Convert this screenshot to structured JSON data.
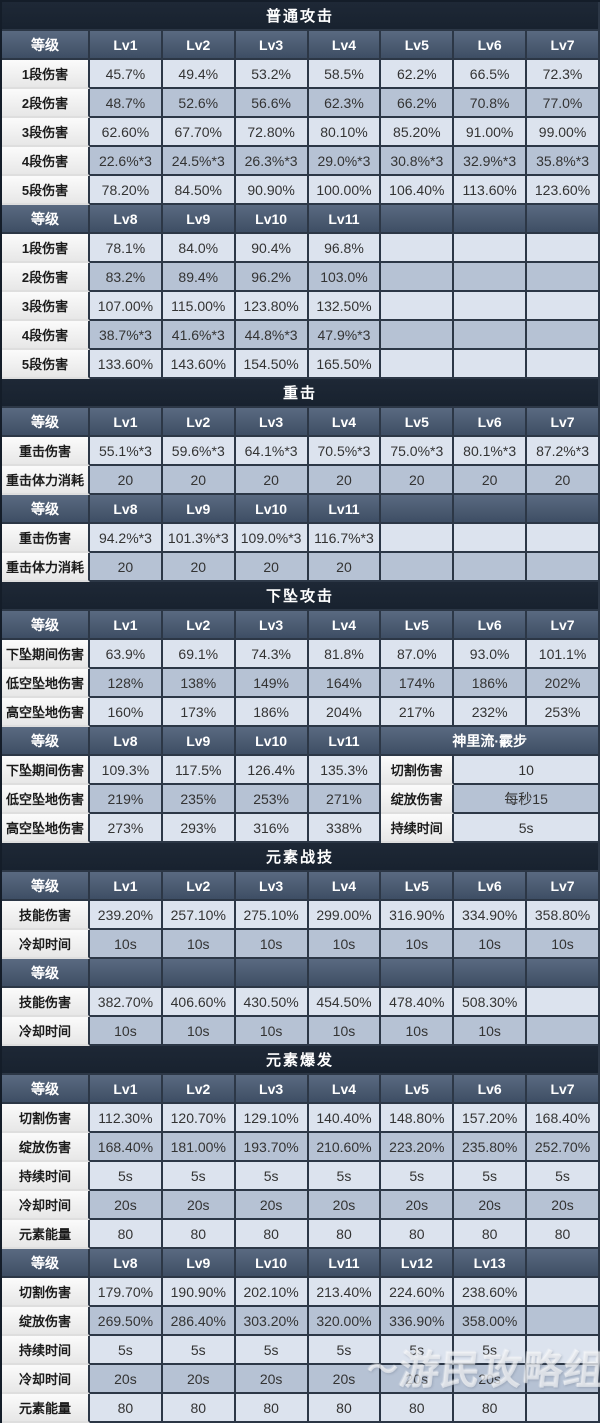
{
  "palette": {
    "title_bg": "#1e2836",
    "header_bg": "#46566d",
    "row_light": "#dce3ee",
    "row_dark": "#b6c2d4",
    "label_bg": "#f2f2f2",
    "grid": "#2c3746"
  },
  "watermark": {
    "text": "游民攻略组"
  },
  "chart_data": [
    {
      "type": "table",
      "title": "普通攻击",
      "blocks": [
        {
          "header": [
            "等级",
            "Lv1",
            "Lv2",
            "Lv3",
            "Lv4",
            "Lv5",
            "Lv6",
            "Lv7"
          ],
          "rows": [
            {
              "label": "1段伤害",
              "values": [
                "45.7%",
                "49.4%",
                "53.2%",
                "58.5%",
                "62.2%",
                "66.5%",
                "72.3%"
              ]
            },
            {
              "label": "2段伤害",
              "values": [
                "48.7%",
                "52.6%",
                "56.6%",
                "62.3%",
                "66.2%",
                "70.8%",
                "77.0%"
              ]
            },
            {
              "label": "3段伤害",
              "values": [
                "62.60%",
                "67.70%",
                "72.80%",
                "80.10%",
                "85.20%",
                "91.00%",
                "99.00%"
              ]
            },
            {
              "label": "4段伤害",
              "values": [
                "22.6%*3",
                "24.5%*3",
                "26.3%*3",
                "29.0%*3",
                "30.8%*3",
                "32.9%*3",
                "35.8%*3"
              ]
            },
            {
              "label": "5段伤害",
              "values": [
                "78.20%",
                "84.50%",
                "90.90%",
                "100.00%",
                "106.40%",
                "113.60%",
                "123.60%"
              ]
            }
          ]
        },
        {
          "header": [
            "等级",
            "Lv8",
            "Lv9",
            "Lv10",
            "Lv11",
            "",
            "",
            ""
          ],
          "rows": [
            {
              "label": "1段伤害",
              "values": [
                "78.1%",
                "84.0%",
                "90.4%",
                "96.8%",
                "",
                "",
                ""
              ]
            },
            {
              "label": "2段伤害",
              "values": [
                "83.2%",
                "89.4%",
                "96.2%",
                "103.0%",
                "",
                "",
                ""
              ]
            },
            {
              "label": "3段伤害",
              "values": [
                "107.00%",
                "115.00%",
                "123.80%",
                "132.50%",
                "",
                "",
                ""
              ]
            },
            {
              "label": "4段伤害",
              "values": [
                "38.7%*3",
                "41.6%*3",
                "44.8%*3",
                "47.9%*3",
                "",
                "",
                ""
              ]
            },
            {
              "label": "5段伤害",
              "values": [
                "133.60%",
                "143.60%",
                "154.50%",
                "165.50%",
                "",
                "",
                ""
              ]
            }
          ]
        }
      ]
    },
    {
      "type": "table",
      "title": "重击",
      "blocks": [
        {
          "header": [
            "等级",
            "Lv1",
            "Lv2",
            "Lv3",
            "Lv4",
            "Lv5",
            "Lv6",
            "Lv7"
          ],
          "rows": [
            {
              "label": "重击伤害",
              "values": [
                "55.1%*3",
                "59.6%*3",
                "64.1%*3",
                "70.5%*3",
                "75.0%*3",
                "80.1%*3",
                "87.2%*3"
              ]
            },
            {
              "label": "重击体力消耗",
              "values": [
                "20",
                "20",
                "20",
                "20",
                "20",
                "20",
                "20"
              ]
            }
          ]
        },
        {
          "header": [
            "等级",
            "Lv8",
            "Lv9",
            "Lv10",
            "Lv11",
            "",
            "",
            ""
          ],
          "rows": [
            {
              "label": "重击伤害",
              "values": [
                "94.2%*3",
                "101.3%*3",
                "109.0%*3",
                "116.7%*3",
                "",
                "",
                ""
              ]
            },
            {
              "label": "重击体力消耗",
              "values": [
                "20",
                "20",
                "20",
                "20",
                "",
                "",
                ""
              ]
            }
          ]
        }
      ]
    },
    {
      "type": "table",
      "title": "下坠攻击",
      "blocks": [
        {
          "header": [
            "等级",
            "Lv1",
            "Lv2",
            "Lv3",
            "Lv4",
            "Lv5",
            "Lv6",
            "Lv7"
          ],
          "rows": [
            {
              "label": "下坠期间伤害",
              "values": [
                "63.9%",
                "69.1%",
                "74.3%",
                "81.8%",
                "87.0%",
                "93.0%",
                "101.1%"
              ]
            },
            {
              "label": "低空坠地伤害",
              "values": [
                "128%",
                "138%",
                "149%",
                "164%",
                "174%",
                "186%",
                "202%"
              ]
            },
            {
              "label": "高空坠地伤害",
              "values": [
                "160%",
                "173%",
                "186%",
                "204%",
                "217%",
                "232%",
                "253%"
              ]
            }
          ]
        },
        {
          "header": [
            "等级",
            "Lv8",
            "Lv9",
            "Lv10",
            "Lv11",
            {
              "text": "神里流·霰步",
              "span": 3
            }
          ],
          "rows": [
            {
              "label": "下坠期间伤害",
              "values": [
                "109.3%",
                "117.5%",
                "126.4%",
                "135.3%"
              ],
              "extra": {
                "label": "切割伤害",
                "value": "10"
              }
            },
            {
              "label": "低空坠地伤害",
              "values": [
                "219%",
                "235%",
                "253%",
                "271%"
              ],
              "extra": {
                "label": "绽放伤害",
                "value": "每秒15"
              }
            },
            {
              "label": "高空坠地伤害",
              "values": [
                "273%",
                "293%",
                "316%",
                "338%"
              ],
              "extra": {
                "label": "持续时间",
                "value": "5s"
              }
            }
          ]
        }
      ]
    },
    {
      "type": "table",
      "title": "元素战技",
      "blocks": [
        {
          "header": [
            "等级",
            "Lv1",
            "Lv2",
            "Lv3",
            "Lv4",
            "Lv5",
            "Lv6",
            "Lv7"
          ],
          "rows": [
            {
              "label": "技能伤害",
              "values": [
                "239.20%",
                "257.10%",
                "275.10%",
                "299.00%",
                "316.90%",
                "334.90%",
                "358.80%"
              ]
            },
            {
              "label": "冷却时间",
              "values": [
                "10s",
                "10s",
                "10s",
                "10s",
                "10s",
                "10s",
                "10s"
              ]
            }
          ]
        },
        {
          "header": [
            "等级",
            "",
            "",
            "",
            "",
            "",
            "",
            ""
          ],
          "rows": [
            {
              "label": "技能伤害",
              "values": [
                "382.70%",
                "406.60%",
                "430.50%",
                "454.50%",
                "478.40%",
                "508.30%",
                ""
              ]
            },
            {
              "label": "冷却时间",
              "values": [
                "10s",
                "10s",
                "10s",
                "10s",
                "10s",
                "10s",
                ""
              ]
            }
          ]
        }
      ]
    },
    {
      "type": "table",
      "title": "元素爆发",
      "blocks": [
        {
          "header": [
            "等级",
            "Lv1",
            "Lv2",
            "Lv3",
            "Lv4",
            "Lv5",
            "Lv6",
            "Lv7"
          ],
          "rows": [
            {
              "label": "切割伤害",
              "values": [
                "112.30%",
                "120.70%",
                "129.10%",
                "140.40%",
                "148.80%",
                "157.20%",
                "168.40%"
              ]
            },
            {
              "label": "绽放伤害",
              "values": [
                "168.40%",
                "181.00%",
                "193.70%",
                "210.60%",
                "223.20%",
                "235.80%",
                "252.70%"
              ]
            },
            {
              "label": "持续时间",
              "values": [
                "5s",
                "5s",
                "5s",
                "5s",
                "5s",
                "5s",
                "5s"
              ]
            },
            {
              "label": "冷却时间",
              "values": [
                "20s",
                "20s",
                "20s",
                "20s",
                "20s",
                "20s",
                "20s"
              ]
            },
            {
              "label": "元素能量",
              "values": [
                "80",
                "80",
                "80",
                "80",
                "80",
                "80",
                "80"
              ]
            }
          ]
        },
        {
          "header": [
            "等级",
            "Lv8",
            "Lv9",
            "Lv10",
            "Lv11",
            "Lv12",
            "Lv13",
            ""
          ],
          "rows": [
            {
              "label": "切割伤害",
              "values": [
                "179.70%",
                "190.90%",
                "202.10%",
                "213.40%",
                "224.60%",
                "238.60%",
                ""
              ]
            },
            {
              "label": "绽放伤害",
              "values": [
                "269.50%",
                "286.40%",
                "303.20%",
                "320.00%",
                "336.90%",
                "358.00%",
                ""
              ]
            },
            {
              "label": "持续时间",
              "values": [
                "5s",
                "5s",
                "5s",
                "5s",
                "5s",
                "5s",
                ""
              ]
            },
            {
              "label": "冷却时间",
              "values": [
                "20s",
                "20s",
                "20s",
                "20s",
                "20s",
                "20s",
                ""
              ]
            },
            {
              "label": "元素能量",
              "values": [
                "80",
                "80",
                "80",
                "80",
                "80",
                "80",
                ""
              ]
            }
          ]
        }
      ]
    }
  ]
}
